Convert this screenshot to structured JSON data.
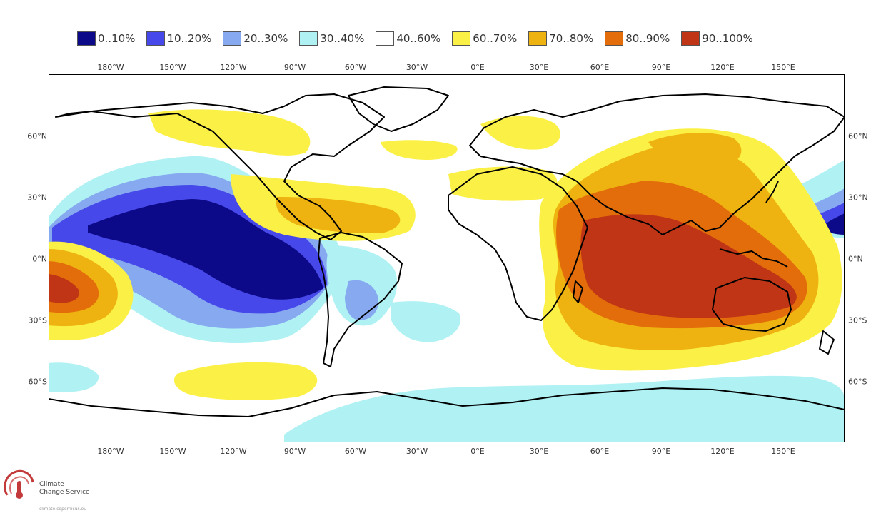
{
  "legend": [
    {
      "label": "0..10%",
      "color": "#0d0a8a"
    },
    {
      "label": "10..20%",
      "color": "#4748ea"
    },
    {
      "label": "20..30%",
      "color": "#86a9f0"
    },
    {
      "label": "30..40%",
      "color": "#b0f1f4"
    },
    {
      "label": "40..60%",
      "color": "#ffffff"
    },
    {
      "label": "60..70%",
      "color": "#fbf146"
    },
    {
      "label": "70..80%",
      "color": "#eeb310"
    },
    {
      "label": "80..90%",
      "color": "#e26d0a"
    },
    {
      "label": "90..100%",
      "color": "#c03515"
    }
  ],
  "longitude_labels": [
    "180°W",
    "150°W",
    "120°W",
    "90°W",
    "60°W",
    "30°W",
    "0°E",
    "30°E",
    "60°E",
    "90°E",
    "120°E",
    "150°E"
  ],
  "latitude_labels": [
    "60°N",
    "30°N",
    "0°N",
    "30°S",
    "60°S"
  ],
  "logo": {
    "icon": "climate-change-service-logo-icon",
    "line1": "Climate",
    "line2": "Change Service",
    "url": "climate.copernicus.eu"
  }
}
